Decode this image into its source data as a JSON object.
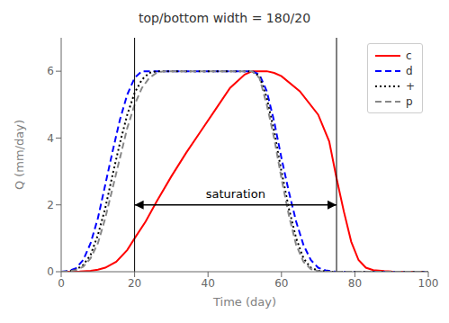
{
  "chart_data": {
    "type": "line",
    "title": "top/bottom width = 180/20",
    "xlabel": "Time (day)",
    "ylabel": "Q (mm/day)",
    "xlim": [
      0,
      100
    ],
    "ylim": [
      0,
      7
    ],
    "xticks": [
      0,
      20,
      40,
      60,
      80,
      100
    ],
    "yticks": [
      0,
      2,
      4,
      6
    ],
    "grid": false,
    "legend": "upper right",
    "vlines": [
      20,
      75
    ],
    "annotations": [
      {
        "type": "arrow",
        "text": "saturation",
        "x1": 20,
        "x2": 75,
        "y": 2.0
      }
    ],
    "series": [
      {
        "name": "c",
        "color": "#ff0000",
        "line_style": "solid",
        "x": [
          0,
          2,
          5,
          8,
          10,
          12,
          15,
          18,
          20,
          23,
          26,
          30,
          34,
          38,
          42,
          46,
          50,
          52,
          54,
          56,
          58,
          60,
          65,
          70,
          73,
          75,
          77,
          79,
          81,
          83,
          85,
          88,
          90,
          95,
          100
        ],
        "values": [
          0,
          0.0,
          0.01,
          0.03,
          0.06,
          0.12,
          0.3,
          0.65,
          1.0,
          1.5,
          2.1,
          2.85,
          3.55,
          4.2,
          4.85,
          5.5,
          5.9,
          6.0,
          6.0,
          6.0,
          5.95,
          5.85,
          5.4,
          4.7,
          3.9,
          2.8,
          1.8,
          0.9,
          0.35,
          0.12,
          0.05,
          0.02,
          0.01,
          0.0,
          0.0
        ]
      },
      {
        "name": "d",
        "color": "#0000ff",
        "line_style": "dashed",
        "x": [
          0,
          2,
          4,
          6,
          8,
          10,
          12,
          14,
          16,
          18,
          20,
          22,
          24,
          26,
          28,
          30,
          35,
          40,
          45,
          48,
          50,
          52,
          54,
          56,
          58,
          60,
          62,
          64,
          66,
          68,
          70,
          72,
          74,
          75,
          76,
          78,
          80,
          85,
          100
        ],
        "values": [
          0,
          0.02,
          0.1,
          0.35,
          0.85,
          1.6,
          2.6,
          3.6,
          4.55,
          5.3,
          5.8,
          6.0,
          6.0,
          6.0,
          6.0,
          6.0,
          6.0,
          6.0,
          6.0,
          6.0,
          6.0,
          6.0,
          5.9,
          5.4,
          4.5,
          3.4,
          2.4,
          1.5,
          0.8,
          0.35,
          0.12,
          0.04,
          0.01,
          0.0,
          0.0,
          0.0,
          0.0,
          0.0,
          0.0
        ]
      },
      {
        "name": "+",
        "color": "#000000",
        "line_style": "dotted",
        "x": [
          0,
          2,
          4,
          6,
          8,
          10,
          12,
          14,
          16,
          18,
          20,
          22,
          24,
          26,
          28,
          30,
          35,
          40,
          45,
          48,
          50,
          52,
          54,
          56,
          58,
          60,
          62,
          64,
          66,
          68,
          70,
          72,
          74,
          75,
          76,
          78,
          80,
          85,
          100
        ],
        "values": [
          0,
          0.01,
          0.06,
          0.2,
          0.5,
          1.1,
          1.9,
          2.9,
          3.85,
          4.7,
          5.35,
          5.75,
          5.95,
          6.0,
          6.0,
          6.0,
          6.0,
          6.0,
          6.0,
          6.0,
          6.0,
          6.0,
          5.85,
          5.2,
          4.2,
          3.0,
          1.9,
          1.0,
          0.4,
          0.12,
          0.03,
          0.01,
          0.0,
          0.0,
          0.0,
          0.0,
          0.0,
          0.0,
          0.0
        ]
      },
      {
        "name": "p",
        "color": "#888888",
        "line_style": "dashed",
        "x": [
          0,
          2,
          4,
          6,
          8,
          10,
          12,
          14,
          16,
          18,
          20,
          22,
          24,
          26,
          28,
          30,
          35,
          40,
          45,
          48,
          50,
          52,
          54,
          56,
          58,
          60,
          62,
          64,
          66,
          68,
          70,
          72,
          74,
          75,
          76,
          78,
          80,
          85,
          100
        ],
        "values": [
          0,
          0.01,
          0.05,
          0.15,
          0.4,
          0.85,
          1.6,
          2.5,
          3.4,
          4.3,
          5.0,
          5.5,
          5.8,
          5.95,
          6.0,
          6.0,
          6.0,
          6.0,
          6.0,
          6.0,
          6.0,
          6.0,
          5.8,
          5.0,
          4.0,
          2.8,
          1.7,
          0.8,
          0.3,
          0.08,
          0.02,
          0.0,
          0.0,
          0.0,
          0.0,
          0.0,
          0.0,
          0.0,
          0.0
        ]
      }
    ]
  }
}
